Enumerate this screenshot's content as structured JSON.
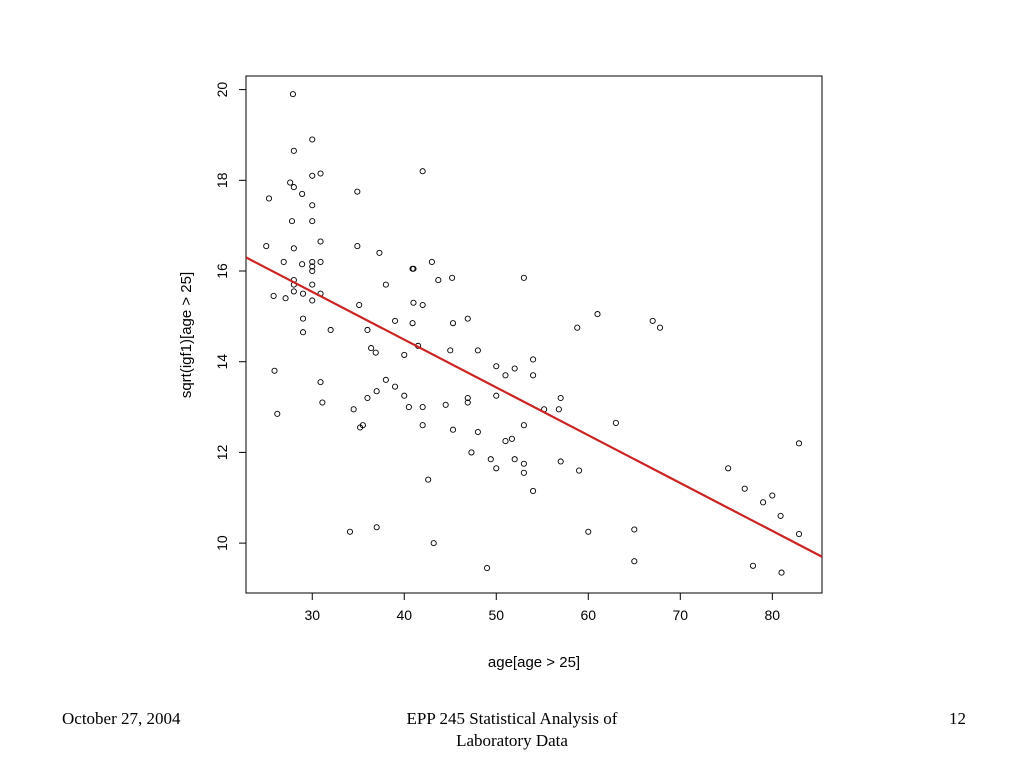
{
  "footer": {
    "date": "October 27, 2004",
    "title_line1": "EPP 245 Statistical Analysis of",
    "title_line2": "Laboratory Data",
    "page": "12"
  },
  "chart_data": {
    "type": "scatter",
    "xlabel": "age[age > 25]",
    "ylabel": "sqrt(igf1)[age > 25]",
    "xlim": [
      22.8,
      85.4
    ],
    "ylim": [
      8.9,
      20.3
    ],
    "x_ticks": [
      30,
      40,
      50,
      60,
      70,
      80
    ],
    "y_ticks": [
      10,
      12,
      14,
      16,
      18,
      20
    ],
    "grid": false,
    "point_color": "#000000",
    "line_color": "#cc2222",
    "regression_line": {
      "x": [
        22.8,
        85.4
      ],
      "y": [
        16.3,
        9.7
      ]
    },
    "points": [
      [
        25,
        16.55
      ],
      [
        25.3,
        17.6
      ],
      [
        25.8,
        15.45
      ],
      [
        25.9,
        13.8
      ],
      [
        26.2,
        12.85
      ],
      [
        26.9,
        16.2
      ],
      [
        27.1,
        15.4
      ],
      [
        27.6,
        17.95
      ],
      [
        27.8,
        17.1
      ],
      [
        27.9,
        19.9
      ],
      [
        28,
        18.65
      ],
      [
        28,
        17.85
      ],
      [
        28,
        16.5
      ],
      [
        28,
        15.8
      ],
      [
        28,
        15.7
      ],
      [
        28,
        15.55
      ],
      [
        28.9,
        17.7
      ],
      [
        28.9,
        16.15
      ],
      [
        29,
        15.5
      ],
      [
        29,
        14.95
      ],
      [
        29,
        14.65
      ],
      [
        30,
        18.9
      ],
      [
        30,
        18.1
      ],
      [
        30,
        17.45
      ],
      [
        30,
        17.1
      ],
      [
        30,
        16.2
      ],
      [
        30,
        16.1
      ],
      [
        30,
        16.0
      ],
      [
        30,
        15.7
      ],
      [
        30,
        15.35
      ],
      [
        30.9,
        18.15
      ],
      [
        30.9,
        16.65
      ],
      [
        30.9,
        16.2
      ],
      [
        30.9,
        15.5
      ],
      [
        30.9,
        13.55
      ],
      [
        31.1,
        13.1
      ],
      [
        32,
        14.7
      ],
      [
        34.1,
        10.25
      ],
      [
        34.5,
        12.95
      ],
      [
        34.9,
        17.75
      ],
      [
        34.9,
        16.55
      ],
      [
        35.1,
        15.25
      ],
      [
        35.2,
        12.55
      ],
      [
        35.5,
        12.6
      ],
      [
        36,
        14.7
      ],
      [
        36,
        13.2
      ],
      [
        36.4,
        14.3
      ],
      [
        36.9,
        14.2
      ],
      [
        37,
        13.35
      ],
      [
        37,
        10.35
      ],
      [
        37.3,
        16.4
      ],
      [
        38,
        15.7
      ],
      [
        38,
        13.6
      ],
      [
        39,
        14.9
      ],
      [
        39,
        13.45
      ],
      [
        40,
        14.15
      ],
      [
        40,
        13.25
      ],
      [
        40.5,
        13.0
      ],
      [
        40.9,
        16.05
      ],
      [
        40.9,
        14.85
      ],
      [
        41,
        16.05
      ],
      [
        41,
        15.3
      ],
      [
        41.5,
        14.35
      ],
      [
        42,
        18.2
      ],
      [
        42,
        15.25
      ],
      [
        42,
        13.0
      ],
      [
        42,
        12.6
      ],
      [
        42.6,
        11.4
      ],
      [
        43,
        16.2
      ],
      [
        43.2,
        10.0
      ],
      [
        43.7,
        15.8
      ],
      [
        44.5,
        13.05
      ],
      [
        45,
        14.25
      ],
      [
        45.2,
        15.85
      ],
      [
        45.3,
        14.85
      ],
      [
        45.3,
        12.5
      ],
      [
        46.9,
        14.95
      ],
      [
        46.9,
        13.2
      ],
      [
        46.9,
        13.1
      ],
      [
        47.3,
        12.0
      ],
      [
        48,
        14.25
      ],
      [
        48,
        12.45
      ],
      [
        49,
        9.45
      ],
      [
        49.4,
        11.85
      ],
      [
        50,
        13.9
      ],
      [
        50,
        13.25
      ],
      [
        50,
        11.65
      ],
      [
        51,
        13.7
      ],
      [
        51,
        12.25
      ],
      [
        51.7,
        12.3
      ],
      [
        52,
        13.85
      ],
      [
        52,
        11.85
      ],
      [
        53,
        15.85
      ],
      [
        53,
        12.6
      ],
      [
        53,
        11.75
      ],
      [
        53,
        11.55
      ],
      [
        54,
        14.05
      ],
      [
        54,
        13.7
      ],
      [
        54,
        11.15
      ],
      [
        55.2,
        12.95
      ],
      [
        56.8,
        12.95
      ],
      [
        57,
        13.2
      ],
      [
        57,
        11.8
      ],
      [
        58.8,
        14.75
      ],
      [
        59,
        11.6
      ],
      [
        60,
        10.25
      ],
      [
        61,
        15.05
      ],
      [
        63,
        12.65
      ],
      [
        65,
        10.3
      ],
      [
        65,
        9.6
      ],
      [
        67,
        14.9
      ],
      [
        67.8,
        14.75
      ],
      [
        75.2,
        11.65
      ],
      [
        77,
        11.2
      ],
      [
        77.9,
        9.5
      ],
      [
        79,
        10.9
      ],
      [
        80,
        11.05
      ],
      [
        80.9,
        10.6
      ],
      [
        81,
        9.35
      ],
      [
        82.9,
        12.2
      ],
      [
        82.9,
        10.2
      ]
    ]
  }
}
